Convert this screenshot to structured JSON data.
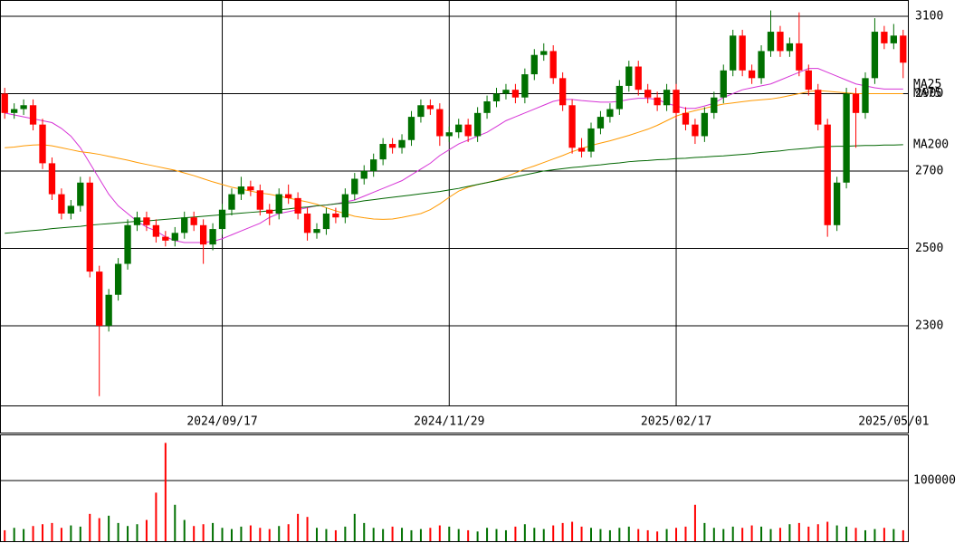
{
  "chart_data": {
    "type": "candlestick",
    "categories": [
      null,
      null,
      null,
      null,
      null,
      null,
      null,
      null,
      null,
      null,
      null,
      null,
      null,
      null,
      null,
      null,
      null,
      null,
      null,
      null,
      null,
      null,
      null,
      "2024/09/17",
      null,
      null,
      null,
      null,
      null,
      null,
      null,
      null,
      null,
      null,
      null,
      null,
      null,
      null,
      null,
      null,
      null,
      null,
      null,
      null,
      null,
      null,
      null,
      "2024/11/29",
      null,
      null,
      null,
      null,
      null,
      null,
      null,
      null,
      null,
      null,
      null,
      null,
      null,
      null,
      null,
      null,
      null,
      null,
      null,
      null,
      null,
      null,
      null,
      "2025/02/17",
      null,
      null,
      null,
      null,
      null,
      null,
      null,
      null,
      null,
      null,
      null,
      null,
      null,
      null,
      null,
      null,
      null,
      null,
      null,
      null,
      null,
      null,
      "2025/05/01",
      null
    ],
    "open": [
      2900,
      2850,
      2860,
      2870,
      2820,
      2720,
      2640,
      2590,
      2610,
      2670,
      2440,
      2300,
      2380,
      2460,
      2560,
      2580,
      2560,
      2530,
      2520,
      2540,
      2580,
      2560,
      2510,
      2550,
      2600,
      2640,
      2660,
      2650,
      2600,
      2590,
      2640,
      2630,
      2590,
      2540,
      2550,
      2590,
      2580,
      2640,
      2680,
      2700,
      2730,
      2770,
      2760,
      2780,
      2840,
      2870,
      2860,
      2790,
      2800,
      2820,
      2790,
      2850,
      2880,
      2900,
      2910,
      2890,
      2950,
      3000,
      3010,
      2940,
      2870,
      2760,
      2750,
      2810,
      2840,
      2860,
      2920,
      2970,
      2910,
      2890,
      2870,
      2910,
      2850,
      2820,
      2790,
      2850,
      2890,
      2960,
      3050,
      2960,
      2940,
      3010,
      3060,
      3010,
      3030,
      2960,
      2910,
      2820,
      2560,
      2670,
      2900,
      2850,
      2940,
      3060,
      3030,
      3050
    ],
    "high": [
      2915,
      2875,
      2885,
      2885,
      2835,
      2735,
      2655,
      2625,
      2685,
      2685,
      2455,
      2395,
      2475,
      2575,
      2595,
      2595,
      2575,
      2545,
      2555,
      2595,
      2595,
      2575,
      2565,
      2615,
      2655,
      2685,
      2675,
      2665,
      2615,
      2655,
      2665,
      2645,
      2605,
      2565,
      2605,
      2605,
      2655,
      2695,
      2715,
      2745,
      2785,
      2785,
      2795,
      2855,
      2885,
      2885,
      2875,
      2815,
      2835,
      2835,
      2865,
      2895,
      2915,
      2925,
      2925,
      2965,
      3015,
      3030,
      3025,
      2955,
      2885,
      2785,
      2825,
      2855,
      2875,
      2935,
      2985,
      2985,
      2925,
      2905,
      2925,
      2925,
      2865,
      2835,
      2865,
      2905,
      2975,
      3065,
      3065,
      2975,
      3025,
      3115,
      3075,
      3045,
      3110,
      2975,
      2925,
      2835,
      2685,
      2915,
      2915,
      2955,
      3095,
      3075,
      3080,
      3065
    ],
    "low": [
      2835,
      2835,
      2845,
      2805,
      2705,
      2625,
      2575,
      2575,
      2595,
      2425,
      2118,
      2285,
      2365,
      2445,
      2545,
      2545,
      2515,
      2505,
      2505,
      2525,
      2545,
      2460,
      2495,
      2535,
      2585,
      2625,
      2635,
      2585,
      2560,
      2575,
      2615,
      2575,
      2520,
      2525,
      2535,
      2565,
      2565,
      2625,
      2665,
      2685,
      2715,
      2745,
      2745,
      2765,
      2825,
      2845,
      2765,
      2775,
      2785,
      2775,
      2775,
      2835,
      2865,
      2885,
      2875,
      2875,
      2935,
      2985,
      2925,
      2855,
      2745,
      2735,
      2735,
      2795,
      2825,
      2845,
      2905,
      2895,
      2875,
      2855,
      2855,
      2835,
      2805,
      2770,
      2775,
      2835,
      2875,
      2945,
      2945,
      2925,
      2925,
      2995,
      2995,
      2995,
      2945,
      2895,
      2805,
      2530,
      2545,
      2655,
      2760,
      2835,
      2925,
      3015,
      3015,
      2940
    ],
    "close": [
      2850,
      2860,
      2870,
      2820,
      2720,
      2640,
      2590,
      2610,
      2670,
      2440,
      2300,
      2380,
      2460,
      2560,
      2580,
      2560,
      2530,
      2520,
      2540,
      2580,
      2560,
      2510,
      2550,
      2600,
      2640,
      2660,
      2650,
      2600,
      2590,
      2640,
      2630,
      2590,
      2540,
      2550,
      2590,
      2580,
      2640,
      2680,
      2700,
      2730,
      2770,
      2760,
      2780,
      2840,
      2870,
      2860,
      2790,
      2800,
      2820,
      2790,
      2850,
      2880,
      2900,
      2910,
      2890,
      2950,
      3000,
      3010,
      2940,
      2870,
      2760,
      2750,
      2810,
      2840,
      2860,
      2920,
      2970,
      2910,
      2890,
      2870,
      2910,
      2850,
      2820,
      2790,
      2850,
      2890,
      2960,
      3050,
      2960,
      2940,
      3010,
      3060,
      3010,
      3030,
      2960,
      2910,
      2820,
      2560,
      2670,
      2900,
      2850,
      2940,
      3060,
      3030,
      3050,
      2980
    ],
    "up_color": "#007000",
    "down_color": "#ff0000",
    "series": [
      {
        "name": "MA25",
        "color": "#d633d6",
        "label_color": "#ff3366",
        "values": [
          2850,
          2845,
          2840,
          2835,
          2830,
          2825,
          2810,
          2790,
          2760,
          2720,
          2680,
          2640,
          2610,
          2590,
          2570,
          2555,
          2545,
          2530,
          2520,
          2515,
          2515,
          2515,
          2518,
          2525,
          2535,
          2545,
          2555,
          2565,
          2580,
          2590,
          2595,
          2600,
          2605,
          2610,
          2612,
          2615,
          2620,
          2625,
          2635,
          2645,
          2655,
          2665,
          2675,
          2690,
          2705,
          2720,
          2740,
          2755,
          2770,
          2780,
          2790,
          2800,
          2815,
          2830,
          2840,
          2850,
          2860,
          2870,
          2880,
          2885,
          2885,
          2882,
          2880,
          2878,
          2878,
          2880,
          2885,
          2888,
          2888,
          2885,
          2875,
          2868,
          2862,
          2862,
          2868,
          2875,
          2890,
          2900,
          2910,
          2915,
          2920,
          2925,
          2935,
          2945,
          2955,
          2965,
          2965,
          2955,
          2945,
          2935,
          2925,
          2920,
          2915,
          2912,
          2912,
          2912
        ]
      },
      {
        "name": "MA75",
        "color": "#ff9900",
        "label_color": "#ff9900",
        "values": [
          2760,
          2762,
          2765,
          2767,
          2768,
          2765,
          2760,
          2755,
          2750,
          2747,
          2743,
          2738,
          2733,
          2728,
          2722,
          2717,
          2712,
          2707,
          2702,
          2695,
          2688,
          2680,
          2672,
          2665,
          2658,
          2653,
          2648,
          2643,
          2640,
          2635,
          2630,
          2625,
          2620,
          2614,
          2605,
          2597,
          2590,
          2583,
          2579,
          2576,
          2575,
          2576,
          2580,
          2585,
          2590,
          2600,
          2615,
          2632,
          2648,
          2658,
          2665,
          2670,
          2676,
          2685,
          2695,
          2705,
          2713,
          2722,
          2731,
          2740,
          2750,
          2758,
          2766,
          2772,
          2778,
          2785,
          2792,
          2800,
          2808,
          2818,
          2830,
          2842,
          2850,
          2856,
          2862,
          2868,
          2873,
          2876,
          2879,
          2882,
          2884,
          2886,
          2890,
          2895,
          2900,
          2905,
          2908,
          2906,
          2904,
          2902,
          2900,
          2900,
          2900,
          2900,
          2900,
          2900
        ]
      },
      {
        "name": "MA200",
        "color": "#006600",
        "label_color": "#006600",
        "values": [
          2539,
          2541,
          2544,
          2546,
          2548,
          2551,
          2553,
          2555,
          2557,
          2560,
          2562,
          2564,
          2566,
          2568,
          2570,
          2571,
          2573,
          2575,
          2577,
          2579,
          2581,
          2583,
          2585,
          2587,
          2589,
          2591,
          2593,
          2595,
          2597,
          2600,
          2602,
          2605,
          2607,
          2610,
          2612,
          2615,
          2617,
          2619,
          2623,
          2626,
          2629,
          2632,
          2635,
          2638,
          2641,
          2644,
          2647,
          2651,
          2655,
          2660,
          2665,
          2670,
          2675,
          2680,
          2685,
          2690,
          2695,
          2700,
          2703,
          2706,
          2709,
          2711,
          2714,
          2716,
          2719,
          2721,
          2724,
          2726,
          2727,
          2729,
          2730,
          2732,
          2733,
          2735,
          2736,
          2738,
          2739,
          2741,
          2743,
          2745,
          2748,
          2750,
          2752,
          2755,
          2757,
          2759,
          2762,
          2763,
          2764,
          2764,
          2765,
          2766,
          2766,
          2767,
          2767,
          2768
        ]
      }
    ],
    "ylim": [
      2094,
      3142
    ],
    "yticks": [
      2300,
      2500,
      2700,
      2900,
      3100
    ],
    "grid": true,
    "volume": {
      "values": [
        18000,
        22000,
        20000,
        25000,
        28000,
        30000,
        22000,
        26000,
        24000,
        45000,
        38000,
        42000,
        30000,
        25000,
        28000,
        35000,
        80000,
        162000,
        60000,
        35000,
        25000,
        28000,
        30000,
        22000,
        20000,
        24000,
        26000,
        22000,
        20000,
        25000,
        28000,
        45000,
        40000,
        22000,
        20000,
        18000,
        24000,
        45000,
        30000,
        22000,
        20000,
        24000,
        22000,
        18000,
        20000,
        22000,
        26000,
        24000,
        20000,
        18000,
        16000,
        22000,
        20000,
        18000,
        24000,
        28000,
        22000,
        20000,
        26000,
        30000,
        32000,
        24000,
        22000,
        20000,
        18000,
        22000,
        24000,
        20000,
        18000,
        16000,
        20000,
        22000,
        24000,
        60000,
        30000,
        22000,
        20000,
        24000,
        22000,
        26000,
        24000,
        20000,
        22000,
        28000,
        30000,
        24000,
        28000,
        32000,
        26000,
        24000,
        22000,
        18000,
        20000,
        22000,
        20000,
        18000
      ],
      "ylim": [
        0,
        176000
      ],
      "yticks": [
        100000
      ]
    }
  }
}
